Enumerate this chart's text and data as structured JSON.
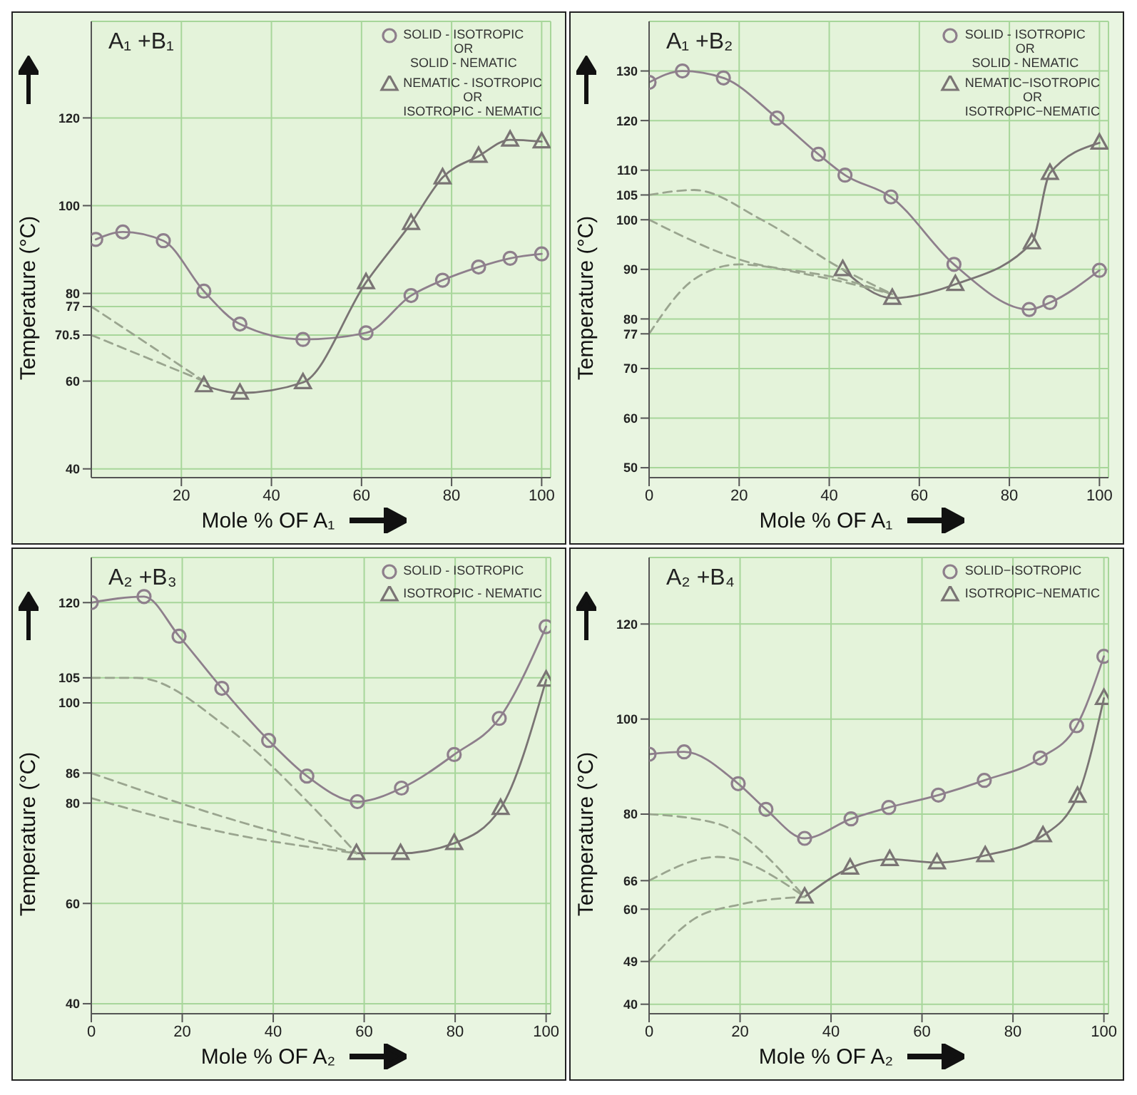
{
  "chart_data": [
    {
      "type": "line",
      "title": "A₁ +B₁",
      "xlabel": "Mole % OF A₁",
      "ylabel": "Temperature (°C)",
      "xlim": [
        0,
        102
      ],
      "ylim": [
        38,
        142
      ],
      "xticks": [
        20,
        40,
        60,
        80,
        100
      ],
      "yticks": [
        40,
        60,
        70.5,
        77,
        80,
        100,
        120
      ],
      "grid": true,
      "legend": "top right",
      "series": [
        {
          "name": "SOLID - ISOTROPIC\nOR\nSOLID - NEMATIC",
          "color": "#8e7f8c",
          "marker": "circle",
          "line_style": "solid",
          "x": [
            1,
            7,
            16,
            25,
            33,
            47,
            61,
            71,
            78,
            86,
            93,
            100
          ],
          "values": [
            92.3,
            94,
            92,
            80.5,
            73,
            69.5,
            71,
            79.5,
            83,
            86,
            88,
            89
          ]
        },
        {
          "name": "NEMATIC - ISOTROPIC\nOR\nISOTROPIC - NEMATIC",
          "color": "#7a7474",
          "marker": "triangle",
          "line_style": "solid",
          "x": [
            25,
            33,
            47,
            61,
            71,
            78,
            86,
            93,
            100
          ],
          "values": [
            59,
            57.3,
            59.7,
            82.5,
            96,
            106.4,
            111.3,
            115,
            114.6
          ]
        },
        {
          "color": "#9aa58f",
          "marker": "none",
          "line_style": "dashed",
          "x": [
            0,
            25
          ],
          "values": [
            77,
            60
          ]
        },
        {
          "color": "#9aa58f",
          "marker": "none",
          "line_style": "dashed",
          "x": [
            0,
            25
          ],
          "values": [
            70.5,
            60
          ]
        }
      ]
    },
    {
      "type": "line",
      "title": "A₁ +B₂",
      "xlabel": "Mole % OF A₁",
      "ylabel": "Temperature (°C)",
      "xlim": [
        0,
        102
      ],
      "ylim": [
        48,
        140
      ],
      "xticks": [
        0,
        20,
        40,
        60,
        80,
        100
      ],
      "yticks": [
        50,
        60,
        70,
        77,
        80,
        90,
        100,
        105,
        110,
        120,
        130
      ],
      "grid": true,
      "legend": "top right",
      "series": [
        {
          "name": "SOLID - ISOTROPIC\nOR\nSOLID - NEMATIC",
          "color": "#8e7f8c",
          "marker": "circle",
          "line_style": "solid",
          "x": [
            0,
            7.4,
            16.5,
            28.4,
            37.6,
            43.5,
            53.7,
            67.7,
            84.4,
            89,
            100
          ],
          "values": [
            127.7,
            130,
            128.6,
            120.5,
            113.2,
            109,
            104.6,
            91,
            81.9,
            83.3,
            89.8
          ]
        },
        {
          "name": "NEMATIC−ISOTROPIC\nOR\nISOTROPIC−NEMATIC",
          "color": "#7a7474",
          "marker": "triangle",
          "line_style": "solid",
          "x": [
            43,
            54,
            68,
            85,
            89,
            100
          ],
          "values": [
            90,
            84.2,
            87,
            95.4,
            109.4,
            115.5
          ]
        },
        {
          "color": "#9aa58f",
          "marker": "none",
          "line_style": "dashed",
          "x": [
            0,
            10,
            25,
            43,
            54
          ],
          "values": [
            105,
            106,
            100,
            90,
            85
          ]
        },
        {
          "color": "#9aa58f",
          "marker": "none",
          "line_style": "dashed",
          "x": [
            0,
            20,
            43,
            54
          ],
          "values": [
            100,
            92,
            88,
            85
          ]
        },
        {
          "color": "#9aa58f",
          "marker": "none",
          "line_style": "dashed",
          "x": [
            0,
            10,
            20,
            35,
            54
          ],
          "values": [
            77,
            88,
            91,
            89,
            85
          ]
        }
      ]
    },
    {
      "type": "line",
      "title": "A₂ +B₃",
      "xlabel": "Mole % OF A₂",
      "ylabel": "Temperature (°C)",
      "xlim": [
        0,
        101
      ],
      "ylim": [
        38,
        129
      ],
      "xticks": [
        0,
        20,
        40,
        60,
        80,
        100
      ],
      "yticks": [
        40,
        60,
        80,
        86,
        100,
        105,
        120
      ],
      "grid": true,
      "legend": "top right",
      "series": [
        {
          "name": "SOLID - ISOTROPIC",
          "color": "#8e7f8c",
          "marker": "circle",
          "line_style": "solid",
          "x": [
            0,
            11.6,
            19.3,
            28.7,
            39,
            47.4,
            58.5,
            68.2,
            79.8,
            89.7,
            100
          ],
          "values": [
            120,
            121.2,
            113.3,
            102.9,
            92.5,
            85.4,
            80.3,
            83,
            89.7,
            96.9,
            115.2
          ]
        },
        {
          "name": "ISOTROPIC - NEMATIC",
          "color": "#7a7474",
          "marker": "triangle",
          "line_style": "solid",
          "x": [
            58.3,
            68,
            79.8,
            90,
            100
          ],
          "values": [
            70,
            70,
            72,
            79,
            104.6
          ]
        },
        {
          "color": "#9aa58f",
          "marker": "none",
          "line_style": "dashed",
          "x": [
            0,
            10,
            30,
            50,
            58.3
          ],
          "values": [
            105,
            105,
            95,
            78,
            70
          ]
        },
        {
          "color": "#9aa58f",
          "marker": "none",
          "line_style": "dashed",
          "x": [
            0,
            30,
            58.3
          ],
          "values": [
            86,
            77,
            70
          ]
        },
        {
          "color": "#9aa58f",
          "marker": "none",
          "line_style": "dashed",
          "x": [
            0,
            30,
            58.3
          ],
          "values": [
            81,
            74,
            70
          ]
        }
      ]
    },
    {
      "type": "line",
      "title": "A₂ +B₄",
      "xlabel": "Mole % OF A₂",
      "ylabel": "Temperature (°C)",
      "xlim": [
        0,
        101
      ],
      "ylim": [
        38,
        134
      ],
      "xticks": [
        0,
        20,
        40,
        60,
        80,
        100
      ],
      "yticks": [
        40,
        49,
        60,
        66,
        80,
        100,
        120
      ],
      "grid": true,
      "legend": "top right",
      "series": [
        {
          "name": "SOLID−ISOTROPIC",
          "color": "#8e7f8c",
          "marker": "circle",
          "line_style": "solid",
          "x": [
            0,
            7.7,
            19.6,
            25.7,
            34.2,
            44.4,
            52.7,
            63.6,
            73.7,
            86,
            94,
            100
          ],
          "values": [
            92.6,
            93.1,
            86.4,
            81,
            74.9,
            79,
            81.4,
            84,
            87.1,
            91.8,
            98.6,
            113.2
          ]
        },
        {
          "name": "ISOTROPIC−NEMATIC",
          "color": "#7a7474",
          "marker": "triangle",
          "line_style": "solid",
          "x": [
            34.2,
            44.2,
            52.9,
            63.3,
            73.9,
            86.6,
            94.2,
            100
          ],
          "values": [
            62.6,
            68.7,
            70.5,
            69.8,
            71.3,
            75.5,
            83.8,
            104.4
          ]
        },
        {
          "color": "#9aa58f",
          "marker": "none",
          "line_style": "dashed",
          "x": [
            0,
            15,
            34.2
          ],
          "values": [
            80,
            78,
            62.6
          ]
        },
        {
          "color": "#9aa58f",
          "marker": "none",
          "line_style": "dashed",
          "x": [
            0,
            15,
            34.2
          ],
          "values": [
            66,
            71,
            62.6
          ]
        },
        {
          "color": "#9aa58f",
          "marker": "none",
          "line_style": "dashed",
          "x": [
            0,
            10,
            20,
            34.2
          ],
          "values": [
            49,
            58,
            61,
            62.6
          ]
        }
      ]
    }
  ]
}
